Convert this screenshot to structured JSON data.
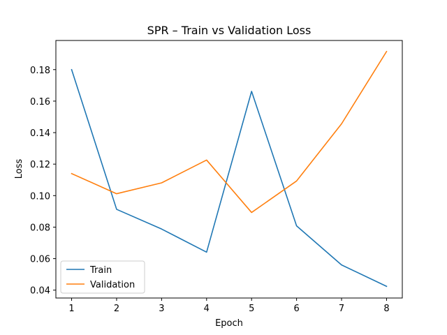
{
  "chart_data": {
    "type": "line",
    "title": "SPR – Train vs Validation Loss",
    "xlabel": "Epoch",
    "ylabel": "Loss",
    "x": [
      1,
      2,
      3,
      4,
      5,
      6,
      7,
      8
    ],
    "xlim": [
      0.65,
      8.35
    ],
    "ylim": [
      0.035,
      0.1985
    ],
    "xticks": [
      1,
      2,
      3,
      4,
      5,
      6,
      7,
      8
    ],
    "yticks": [
      0.04,
      0.06,
      0.08,
      0.1,
      0.12,
      0.14,
      0.16,
      0.18
    ],
    "grid": false,
    "legend_position": "lower-left",
    "series": [
      {
        "name": "Train",
        "color": "#1f77b4",
        "values": [
          0.18,
          0.0913,
          0.0788,
          0.0641,
          0.1662,
          0.0808,
          0.056,
          0.0424
        ]
      },
      {
        "name": "Validation",
        "color": "#ff7f0e",
        "values": [
          0.114,
          0.1012,
          0.1081,
          0.1226,
          0.0893,
          0.1093,
          0.1456,
          0.1915
        ]
      }
    ]
  }
}
